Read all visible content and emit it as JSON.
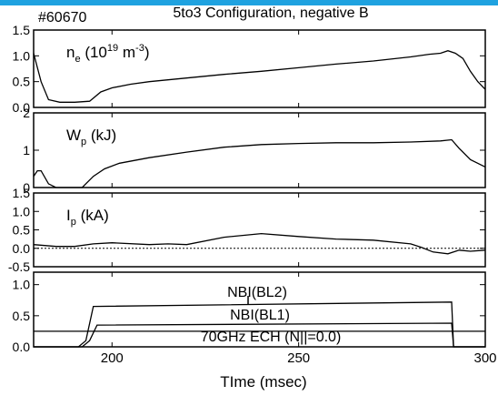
{
  "colors": {
    "accent_bar": "#1fa2e0",
    "line": "#000000",
    "background": "#ffffff"
  },
  "figure": {
    "title": "5to3 Configuration, negative B",
    "shot": "#60670"
  },
  "chart_data": [
    {
      "type": "line",
      "panel_label": "ne (10^19 m^-3)",
      "label_main": "n",
      "label_sub": "e",
      "label_unit": "(10",
      "label_exp": "19",
      "label_unit2": " m",
      "label_exp2": "-3",
      "label_close": ")",
      "xlim": [
        179,
        300
      ],
      "ylim": [
        0,
        1.5
      ],
      "yticks": [
        "0.0",
        "0.5",
        "1.0",
        "1.5"
      ],
      "series": [
        {
          "x": [
            179,
            181,
            183,
            186,
            190,
            194,
            197,
            200,
            205,
            210,
            220,
            230,
            240,
            250,
            260,
            270,
            280,
            285,
            288,
            290,
            292,
            294,
            296,
            298,
            300
          ],
          "y": [
            1.05,
            0.5,
            0.15,
            0.1,
            0.1,
            0.12,
            0.3,
            0.38,
            0.45,
            0.5,
            0.57,
            0.64,
            0.7,
            0.77,
            0.84,
            0.9,
            0.98,
            1.03,
            1.05,
            1.1,
            1.05,
            0.95,
            0.7,
            0.5,
            0.35
          ]
        }
      ]
    },
    {
      "type": "line",
      "label_main": "W",
      "label_sub": "p",
      "label_unit": " (kJ)",
      "xlim": [
        179,
        300
      ],
      "ylim": [
        0,
        2
      ],
      "yticks": [
        "0",
        "1",
        "2"
      ],
      "series": [
        {
          "x": [
            179,
            180,
            181,
            183,
            185,
            188,
            192,
            195,
            198,
            202,
            210,
            220,
            230,
            240,
            250,
            260,
            270,
            280,
            288,
            291,
            293,
            296,
            300
          ],
          "y": [
            0.3,
            0.45,
            0.45,
            0.1,
            0.0,
            0.0,
            0.0,
            0.3,
            0.5,
            0.65,
            0.8,
            0.95,
            1.08,
            1.15,
            1.18,
            1.2,
            1.2,
            1.22,
            1.25,
            1.28,
            1.05,
            0.75,
            0.55
          ]
        }
      ]
    },
    {
      "type": "line",
      "label_main": "I",
      "label_sub": "p",
      "label_unit": " (kA)",
      "xlim": [
        179,
        300
      ],
      "ylim": [
        -0.5,
        1.5
      ],
      "yticks": [
        "-0.5",
        "0.0",
        "0.5",
        "1.0",
        "1.5"
      ],
      "zero_line": true,
      "series": [
        {
          "x": [
            179,
            185,
            190,
            195,
            200,
            210,
            215,
            220,
            230,
            240,
            250,
            260,
            270,
            280,
            283,
            286,
            290,
            293,
            296,
            300
          ],
          "y": [
            0.1,
            0.05,
            0.05,
            0.12,
            0.15,
            0.1,
            0.12,
            0.1,
            0.3,
            0.4,
            0.32,
            0.25,
            0.22,
            0.12,
            0.02,
            -0.1,
            -0.15,
            -0.05,
            -0.08,
            -0.05
          ]
        }
      ]
    },
    {
      "type": "line",
      "xlim": [
        179,
        300
      ],
      "ylim": [
        0,
        1.2
      ],
      "yticks": [
        "0.0",
        "0.5",
        "1.0"
      ],
      "xticks": [
        "200",
        "250",
        "300"
      ],
      "xlabel": "TIme (msec)",
      "series": [
        {
          "name": "NBI(BL2)",
          "x": [
            179,
            191,
            193,
            195,
            291,
            291.5,
            300
          ],
          "y": [
            0,
            0,
            0.1,
            0.65,
            0.72,
            0,
            0
          ]
        },
        {
          "name": "NBI(BL1)",
          "x": [
            179,
            192,
            194,
            196,
            291,
            291.5,
            300
          ],
          "y": [
            0,
            0,
            0.1,
            0.35,
            0.38,
            0,
            0
          ]
        },
        {
          "name": "70GHz ECH (N||=0.0)",
          "x": [
            179,
            300
          ],
          "y": [
            0.25,
            0.25
          ]
        }
      ]
    }
  ]
}
